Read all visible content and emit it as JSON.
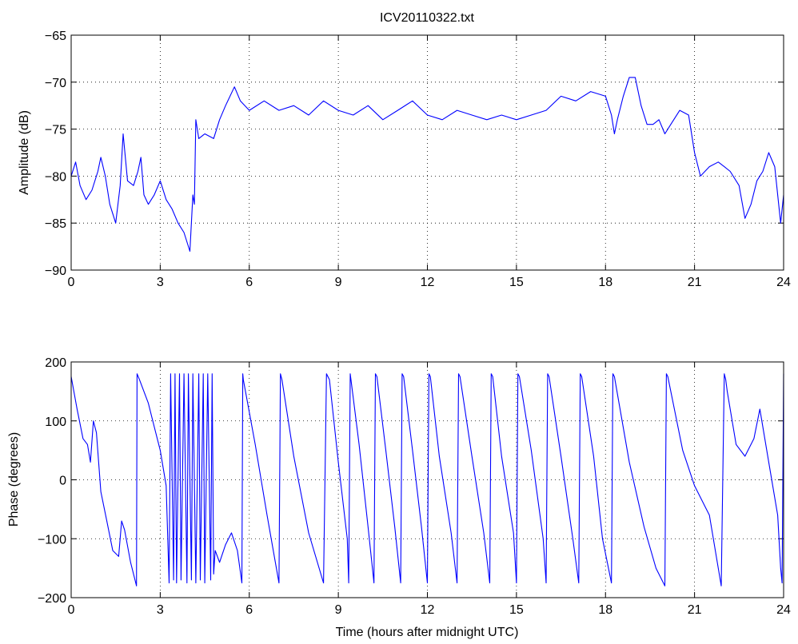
{
  "chart_data": [
    {
      "type": "line",
      "title": "ICV20110322.txt",
      "xlabel": "",
      "ylabel": "Amplitude (dB)",
      "xlim": [
        0,
        24
      ],
      "ylim": [
        -90,
        -65
      ],
      "xticks": [
        0,
        3,
        6,
        9,
        12,
        15,
        18,
        21,
        24
      ],
      "xtick_labels": [
        "0",
        "3",
        "6",
        "9",
        "12",
        "15",
        "18",
        "21",
        "24"
      ],
      "yticks": [
        -90,
        -85,
        -80,
        -75,
        -70,
        -65
      ],
      "ytick_labels": [
        "−90",
        "−85",
        "−80",
        "−75",
        "−70",
        "−65"
      ],
      "grid": true,
      "color": "#0000ff",
      "series": [
        {
          "x": [
            0,
            0.15,
            0.3,
            0.5,
            0.7,
            0.9,
            1.0,
            1.15,
            1.3,
            1.5,
            1.65,
            1.75,
            1.9,
            2.1,
            2.25,
            2.35,
            2.45,
            2.6,
            2.8,
            3.0,
            3.2,
            3.4,
            3.6,
            3.8,
            4.0,
            4.1,
            4.15,
            4.2,
            4.3,
            4.5,
            4.8,
            5.0,
            5.2,
            5.5,
            5.7,
            6.0,
            6.5,
            7.0,
            7.5,
            8.0,
            8.5,
            9.0,
            9.5,
            10.0,
            10.5,
            11.0,
            11.5,
            12.0,
            12.5,
            13.0,
            13.5,
            14.0,
            14.5,
            15.0,
            15.5,
            16.0,
            16.5,
            17.0,
            17.5,
            18.0,
            18.2,
            18.3,
            18.4,
            18.6,
            18.8,
            19.0,
            19.2,
            19.4,
            19.6,
            19.8,
            20.0,
            20.2,
            20.5,
            20.8,
            21.0,
            21.2,
            21.5,
            21.8,
            22.0,
            22.2,
            22.5,
            22.7,
            22.9,
            23.1,
            23.3,
            23.5,
            23.7,
            23.9,
            24.0
          ],
          "y": [
            -80,
            -78.5,
            -81,
            -82.5,
            -81.5,
            -79.5,
            -78,
            -80,
            -83,
            -85,
            -81,
            -75.5,
            -80.5,
            -81,
            -79.5,
            -78,
            -82,
            -83,
            -82,
            -80.5,
            -82.5,
            -83.5,
            -85,
            -86,
            -88,
            -82,
            -83,
            -74,
            -76,
            -75.5,
            -76,
            -74,
            -72.5,
            -70.5,
            -72,
            -73,
            -72,
            -73,
            -72.5,
            -73.5,
            -72,
            -73,
            -73.5,
            -72.5,
            -74,
            -73,
            -72,
            -73.5,
            -74,
            -73,
            -73.5,
            -74,
            -73.5,
            -74,
            -73.5,
            -73,
            -71.5,
            -72,
            -71,
            -71.5,
            -73.5,
            -75.5,
            -74,
            -71.5,
            -69.5,
            -69.5,
            -72.5,
            -74.5,
            -74.5,
            -74,
            -75.5,
            -74.5,
            -73,
            -73.5,
            -77.5,
            -80,
            -79,
            -78.5,
            -79,
            -79.5,
            -81,
            -84.5,
            -83,
            -80.5,
            -79.5,
            -77.5,
            -79,
            -85,
            -82
          ]
        }
      ]
    },
    {
      "type": "line",
      "title": "",
      "xlabel": "Time (hours after midnight UTC)",
      "ylabel": "Phase (degrees)",
      "xlim": [
        0,
        24
      ],
      "ylim": [
        -200,
        200
      ],
      "xticks": [
        0,
        3,
        6,
        9,
        12,
        15,
        18,
        21,
        24
      ],
      "xtick_labels": [
        "0",
        "3",
        "6",
        "9",
        "12",
        "15",
        "18",
        "21",
        "24"
      ],
      "yticks": [
        -200,
        -100,
        0,
        100,
        200
      ],
      "ytick_labels": [
        "−200",
        "−100",
        "0",
        "100",
        "200"
      ],
      "grid": true,
      "color": "#0000ff",
      "series": [
        {
          "x": [
            0,
            0.2,
            0.4,
            0.55,
            0.65,
            0.75,
            0.85,
            1.0,
            1.2,
            1.4,
            1.6,
            1.7,
            1.8,
            2.0,
            2.2,
            2.22,
            2.3,
            2.6,
            2.8,
            3.0,
            3.2,
            3.3,
            3.35,
            3.45,
            3.5,
            3.55,
            3.65,
            3.7,
            3.8,
            3.9,
            3.95,
            4.05,
            4.1,
            4.2,
            4.3,
            4.35,
            4.45,
            4.5,
            4.6,
            4.7,
            4.75,
            4.8,
            4.85,
            5.0,
            5.2,
            5.4,
            5.6,
            5.75,
            5.78,
            5.8,
            6.2,
            6.6,
            7.0,
            7.05,
            7.1,
            7.5,
            8.0,
            8.5,
            8.6,
            8.65,
            8.7,
            9.0,
            9.3,
            9.35,
            9.4,
            9.7,
            10.0,
            10.2,
            10.25,
            10.3,
            10.6,
            10.9,
            11.1,
            11.15,
            11.2,
            11.5,
            11.8,
            12.0,
            12.05,
            12.1,
            12.4,
            12.8,
            13.0,
            13.05,
            13.1,
            13.5,
            13.9,
            14.1,
            14.15,
            14.2,
            14.5,
            14.9,
            15.0,
            15.05,
            15.1,
            15.5,
            15.9,
            16.0,
            16.05,
            16.1,
            16.5,
            16.9,
            17.1,
            17.15,
            17.2,
            17.6,
            17.9,
            18.2,
            18.25,
            18.3,
            18.8,
            19.3,
            19.7,
            20.0,
            20.05,
            20.1,
            20.6,
            21.0,
            21.5,
            21.9,
            22.0,
            22.05,
            22.1,
            22.4,
            22.7,
            23.0,
            23.2,
            23.5,
            23.8,
            23.9,
            23.95,
            24.0
          ],
          "y": [
            175,
            120,
            70,
            60,
            30,
            100,
            80,
            -20,
            -70,
            -120,
            -130,
            -70,
            -85,
            -140,
            -180,
            180,
            170,
            130,
            90,
            50,
            -10,
            -175,
            180,
            -170,
            180,
            -175,
            180,
            -170,
            180,
            -175,
            180,
            -170,
            180,
            -175,
            180,
            -170,
            180,
            -175,
            180,
            -170,
            180,
            -160,
            -120,
            -140,
            -110,
            -90,
            -120,
            -175,
            180,
            170,
            60,
            -60,
            -175,
            180,
            170,
            40,
            -90,
            -175,
            180,
            175,
            170,
            30,
            -100,
            -175,
            180,
            60,
            -80,
            -175,
            180,
            175,
            50,
            -80,
            -175,
            180,
            175,
            50,
            -80,
            -175,
            180,
            175,
            40,
            -90,
            -175,
            180,
            175,
            40,
            -90,
            -175,
            180,
            175,
            40,
            -90,
            -175,
            180,
            175,
            50,
            -100,
            -175,
            180,
            175,
            40,
            -100,
            -175,
            180,
            175,
            40,
            -100,
            -175,
            180,
            175,
            30,
            -80,
            -150,
            -180,
            180,
            175,
            50,
            -10,
            -60,
            -180,
            180,
            170,
            150,
            60,
            40,
            70,
            120,
            30,
            -60,
            -150,
            -175,
            180
          ]
        }
      ]
    }
  ]
}
